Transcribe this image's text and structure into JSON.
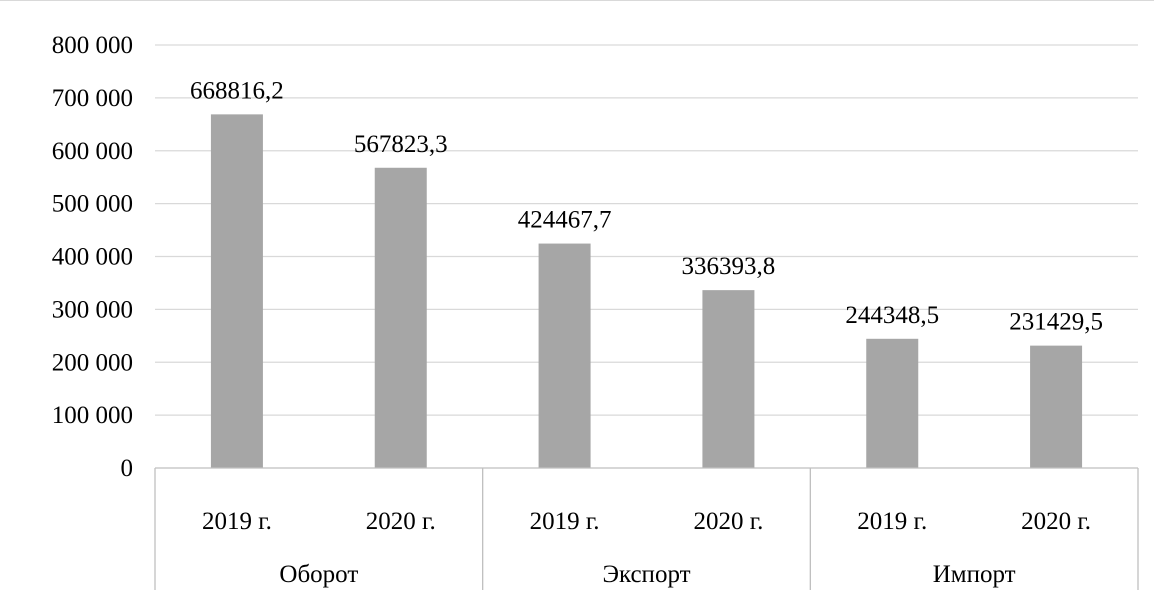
{
  "chart_data": {
    "type": "bar",
    "title": "",
    "xlabel": "",
    "ylabel": "",
    "ylim": [
      0,
      800000
    ],
    "yticks": [
      0,
      100000,
      200000,
      300000,
      400000,
      500000,
      600000,
      700000,
      800000
    ],
    "ytick_labels": [
      "0",
      "100 000",
      "200 000",
      "300 000",
      "400 000",
      "500 000",
      "600 000",
      "700 000",
      "800 000"
    ],
    "grid": true,
    "legend": "none",
    "groups": [
      {
        "label": "Оборот",
        "categories": [
          "2019 г.",
          "2020 г."
        ],
        "values": [
          668816.2,
          567823.3
        ],
        "value_labels": [
          "668816,2",
          "567823,3"
        ]
      },
      {
        "label": "Экспорт",
        "categories": [
          "2019 г.",
          "2020 г."
        ],
        "values": [
          424467.7,
          336393.8
        ],
        "value_labels": [
          "424467,7",
          "336393,8"
        ]
      },
      {
        "label": "Импорт",
        "categories": [
          "2019 г.",
          "2020 г."
        ],
        "values": [
          244348.5,
          231429.5
        ],
        "value_labels": [
          "244348,5",
          "231429,5"
        ]
      }
    ],
    "colors": {
      "bar": "#a6a6a6",
      "grid": "#d9d9d9",
      "axis": "#bfbfbf",
      "text": "#000000"
    }
  }
}
